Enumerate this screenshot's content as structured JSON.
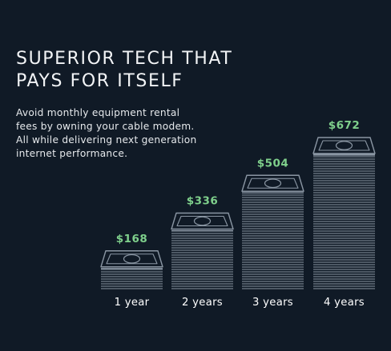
{
  "headline": {
    "line1": "SUPERIOR TECH THAT",
    "line2": "PAYS FOR ITSELF"
  },
  "description": {
    "line1": "Avoid monthly equipment rental",
    "line2": "fees by owning your cable modem.",
    "line3": "All while delivering next generation",
    "line4": "internet performance."
  },
  "colors": {
    "background": "#101a26",
    "accent_value": "#7fd08c",
    "stack_line": "#8a96a3",
    "text": "#ffffff"
  },
  "icon": "money-stack-icon",
  "chart_data": {
    "type": "bar",
    "categories": [
      "1 year",
      "2 years",
      "3 years",
      "4 years"
    ],
    "values": [
      168,
      336,
      504,
      672
    ],
    "value_labels": [
      "$168",
      "$336",
      "$504",
      "$672"
    ],
    "title": "",
    "xlabel": "",
    "ylabel": "",
    "ylim": [
      0,
      672
    ],
    "grid": false,
    "legend": "none"
  }
}
